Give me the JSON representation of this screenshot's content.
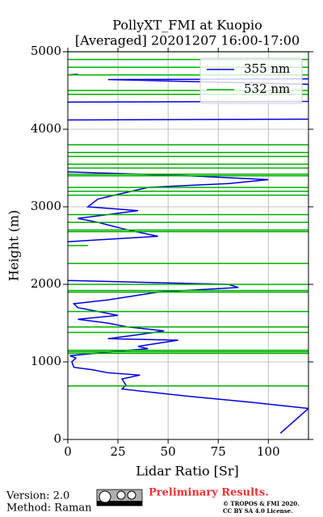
{
  "chart_data": {
    "type": "line",
    "title": "PollyXT_FMI at Kuopio",
    "subtitle": "[Averaged] 20201207 16:00-17:00",
    "x_label": "Lidar Ratio [Sr]",
    "y_label": "Height (m)",
    "xlim": [
      0,
      120
    ],
    "xticks": [
      0,
      25,
      50,
      75,
      100
    ],
    "ylim": [
      0,
      5000
    ],
    "yticks": [
      0,
      1000,
      2000,
      3000,
      4000,
      5000
    ],
    "grid": true,
    "legend": "upper right",
    "series": [
      {
        "name": "355 nm",
        "color": "#0000dd",
        "values": [
          106,
          120,
          91,
          59,
          27,
          29,
          27,
          36,
          20,
          12,
          3,
          2,
          4,
          1,
          30,
          40,
          35,
          55,
          20,
          35,
          48,
          30,
          20,
          5,
          25,
          15,
          5,
          3,
          20,
          45,
          85,
          80,
          0,
          null,
          0,
          45,
          30,
          15,
          5,
          35,
          10,
          15,
          40,
          80,
          100,
          60,
          0,
          null,
          0,
          120,
          null,
          0,
          120,
          120,
          20,
          120,
          null,
          0,
          5
        ],
        "height": [
          80,
          400,
          480,
          560,
          650,
          700,
          780,
          830,
          860,
          900,
          930,
          1000,
          1050,
          1080,
          1150,
          1170,
          1200,
          1280,
          1300,
          1350,
          1400,
          1450,
          1500,
          1550,
          1600,
          1650,
          1700,
          1750,
          1800,
          1900,
          1960,
          2000,
          2050,
          null,
          2550,
          2620,
          2700,
          2800,
          2850,
          2950,
          3000,
          3100,
          3250,
          3300,
          3350,
          3400,
          3450,
          null,
          4120,
          4130,
          null,
          4350,
          4360,
          4580,
          4640,
          4650,
          null,
          4700,
          4710
        ]
      },
      {
        "name": "532 nm",
        "color": "#00b000",
        "values": [
          0,
          120,
          null,
          0,
          120,
          null,
          0,
          120,
          null,
          0,
          120,
          null,
          0,
          120,
          null,
          0,
          120,
          null,
          0,
          120,
          null,
          0,
          120,
          null,
          0,
          120,
          null,
          0,
          120,
          null,
          0,
          120,
          null,
          0,
          10,
          null,
          0,
          120,
          null,
          0,
          120,
          null,
          0,
          120,
          null,
          0,
          120,
          null,
          0,
          120,
          null,
          0,
          120,
          null,
          0,
          120,
          null,
          0,
          120,
          null,
          0,
          120,
          null,
          0,
          120,
          null,
          0,
          120,
          null,
          0,
          120,
          null,
          0,
          120,
          null,
          0,
          120,
          null,
          0,
          120,
          null,
          0,
          120,
          null,
          0,
          120,
          null,
          0,
          120,
          null,
          0,
          120,
          null,
          0,
          120,
          null,
          0,
          120
        ],
        "height": [
          690,
          690,
          null,
          1110,
          1110,
          null,
          1130,
          1130,
          null,
          1150,
          1150,
          null,
          1380,
          1380,
          null,
          1450,
          1450,
          null,
          1650,
          1650,
          null,
          1900,
          1900,
          null,
          1920,
          1920,
          null,
          2000,
          2000,
          null,
          2270,
          2270,
          null,
          2500,
          2500,
          null,
          2680,
          2680,
          null,
          2700,
          2700,
          null,
          2800,
          2800,
          null,
          2900,
          2900,
          null,
          3150,
          3150,
          null,
          3200,
          3200,
          null,
          3250,
          3250,
          null,
          3400,
          3400,
          null,
          3420,
          3420,
          null,
          3500,
          3500,
          null,
          3550,
          3550,
          null,
          3650,
          3650,
          null,
          3700,
          3700,
          null,
          3800,
          3800,
          null,
          4450,
          4450,
          null,
          4500,
          4500,
          null,
          4700,
          4700,
          null,
          4800,
          4800,
          null,
          4900,
          4900,
          null,
          5000,
          5000
        ]
      }
    ]
  },
  "footer": {
    "version": "Version: 2.0",
    "method": "Method: Raman",
    "status": "Preliminary Results.",
    "copyright": "© TROPOS & FMI 2020.",
    "license": "CC BY SA 4.0 License."
  }
}
